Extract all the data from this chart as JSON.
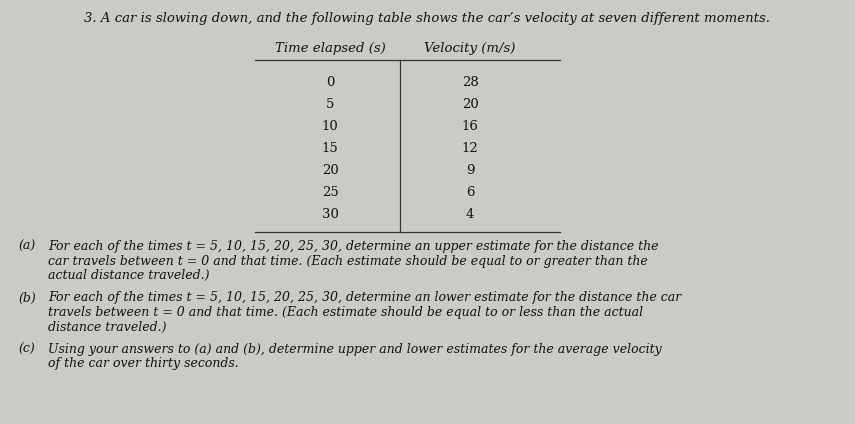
{
  "background_color": "#cccac5",
  "table_bg_color": "#e8e6e1",
  "title_text": "3. A car is slowing down, and the following table shows the car’s velocity at seven different moments.",
  "col_header_left": "Time elapsed (s)",
  "col_header_right": "Velocity (m/s)",
  "table_data": [
    [
      "0",
      "28"
    ],
    [
      "5",
      "20"
    ],
    [
      "10",
      "16"
    ],
    [
      "15",
      "12"
    ],
    [
      "20",
      "9"
    ],
    [
      "25",
      "6"
    ],
    [
      "30",
      "4"
    ]
  ],
  "part_a_label": "(a)",
  "part_a_lines": [
    "For each of the times t = 5, 10, 15, 20, 25, 30, determine an upper estimate for the distance the",
    "car travels between t = 0 and that time. (Each estimate should be equal to or greater than the",
    "actual distance traveled.)"
  ],
  "part_b_label": "(b)",
  "part_b_lines": [
    "For each of the times t = 5, 10, 15, 20, 25, 30, determine an lower estimate for the distance the car",
    "travels between t = 0 and that time. (Each estimate should be equal to or less than the actual",
    "distance traveled.)"
  ],
  "part_c_label": "(c)",
  "part_c_lines": [
    "Using your answers to (a) and (b), determine upper and lower estimates for the average velocity",
    "of the car over thirty seconds."
  ],
  "font_size_title": 9.5,
  "font_size_table": 9.5,
  "font_size_parts": 9.0,
  "text_color": "#111111",
  "line_color": "#333333",
  "font_family": "serif"
}
